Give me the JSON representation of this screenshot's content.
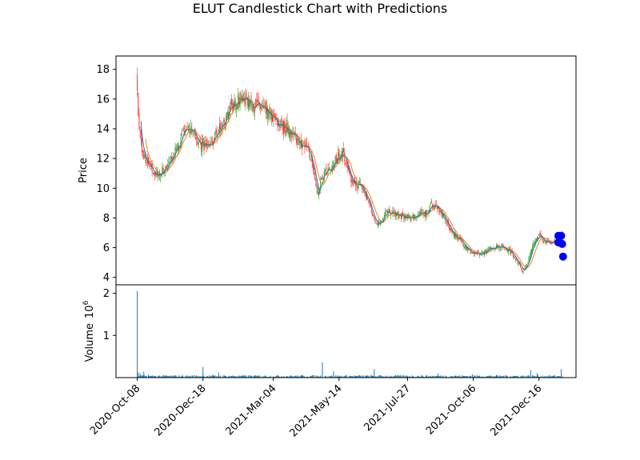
{
  "chart_data": {
    "type": "candlestick",
    "title": "ELUT Candlestick Chart with Predictions",
    "price_panel": {
      "ylabel": "Price",
      "ylim": [
        3.5,
        18.9
      ],
      "yticks": [
        4,
        6,
        8,
        10,
        12,
        14,
        16,
        18
      ]
    },
    "volume_panel": {
      "ylabel": "Volume",
      "ylabel_multiplier": "10",
      "ylabel_exponent": "6",
      "ylim": [
        0,
        2.2
      ],
      "yticks": [
        1,
        2
      ],
      "ytick_labels": [
        "1",
        "2"
      ]
    },
    "x_axis": {
      "range_days": [
        -23,
        474
      ],
      "ticks": [
        {
          "day": 0,
          "label": "2020-Oct-08"
        },
        {
          "day": 71,
          "label": "2020-Dec-18"
        },
        {
          "day": 147,
          "label": "2021-Mar-04"
        },
        {
          "day": 218,
          "label": "2021-May-14"
        },
        {
          "day": 292,
          "label": "2021-Jul-27"
        },
        {
          "day": 363,
          "label": "2021-Oct-06"
        },
        {
          "day": 434,
          "label": "2021-Dec-16"
        }
      ]
    },
    "colors": {
      "up": "#2ca02c",
      "down": "#ff3333",
      "ma_short": "#1f77b4",
      "ma_long": "#ff7f0e",
      "volume": "#1f77b4",
      "prediction": "#0000ff"
    },
    "price_anchors": [
      [
        0,
        17.0
      ],
      [
        1,
        14.6
      ],
      [
        3,
        13.8
      ],
      [
        5,
        12.4
      ],
      [
        8,
        12.1
      ],
      [
        12,
        11.6
      ],
      [
        16,
        11.2
      ],
      [
        20,
        10.9
      ],
      [
        24,
        11.0
      ],
      [
        30,
        11.3
      ],
      [
        36,
        11.9
      ],
      [
        42,
        12.6
      ],
      [
        48,
        13.4
      ],
      [
        53,
        14.3
      ],
      [
        58,
        13.9
      ],
      [
        63,
        13.2
      ],
      [
        70,
        12.9
      ],
      [
        76,
        12.8
      ],
      [
        82,
        13.2
      ],
      [
        88,
        13.9
      ],
      [
        94,
        14.6
      ],
      [
        100,
        15.3
      ],
      [
        106,
        15.8
      ],
      [
        112,
        16.0
      ],
      [
        120,
        15.9
      ],
      [
        128,
        15.6
      ],
      [
        134,
        15.4
      ],
      [
        140,
        15.0
      ],
      [
        146,
        14.8
      ],
      [
        152,
        14.4
      ],
      [
        158,
        14.2
      ],
      [
        164,
        13.9
      ],
      [
        170,
        13.5
      ],
      [
        176,
        13.0
      ],
      [
        182,
        12.9
      ],
      [
        188,
        12.0
      ],
      [
        192,
        10.7
      ],
      [
        195,
        9.7
      ],
      [
        198,
        10.4
      ],
      [
        204,
        11.1
      ],
      [
        210,
        11.5
      ],
      [
        216,
        12.1
      ],
      [
        222,
        12.4
      ],
      [
        226,
        11.5
      ],
      [
        230,
        10.6
      ],
      [
        236,
        10.3
      ],
      [
        242,
        10.1
      ],
      [
        248,
        9.4
      ],
      [
        252,
        8.7
      ],
      [
        256,
        7.9
      ],
      [
        262,
        7.6
      ],
      [
        268,
        8.3
      ],
      [
        274,
        8.4
      ],
      [
        280,
        8.2
      ],
      [
        288,
        8.1
      ],
      [
        296,
        8.0
      ],
      [
        304,
        8.2
      ],
      [
        312,
        8.3
      ],
      [
        318,
        8.9
      ],
      [
        324,
        8.8
      ],
      [
        330,
        8.1
      ],
      [
        336,
        7.5
      ],
      [
        342,
        6.9
      ],
      [
        348,
        6.6
      ],
      [
        354,
        6.1
      ],
      [
        360,
        5.7
      ],
      [
        366,
        5.5
      ],
      [
        372,
        5.6
      ],
      [
        378,
        5.8
      ],
      [
        384,
        6.0
      ],
      [
        390,
        6.1
      ],
      [
        396,
        6.0
      ],
      [
        402,
        5.8
      ],
      [
        408,
        5.4
      ],
      [
        412,
        4.9
      ],
      [
        416,
        4.4
      ],
      [
        420,
        4.7
      ],
      [
        424,
        5.4
      ],
      [
        428,
        6.3
      ],
      [
        432,
        6.7
      ],
      [
        436,
        6.8
      ],
      [
        440,
        6.5
      ],
      [
        444,
        6.3
      ],
      [
        448,
        6.3
      ],
      [
        452,
        6.5
      ],
      [
        458,
        6.7
      ],
      [
        460,
        6.6
      ]
    ],
    "volume_spikes": [
      [
        0,
        2.05
      ],
      [
        1,
        0.12
      ],
      [
        3,
        0.1
      ],
      [
        7,
        0.14
      ],
      [
        12,
        0.07
      ],
      [
        71,
        0.25
      ],
      [
        88,
        0.12
      ],
      [
        200,
        0.36
      ],
      [
        212,
        0.15
      ],
      [
        256,
        0.2
      ],
      [
        325,
        0.1
      ],
      [
        362,
        0.08
      ],
      [
        425,
        0.18
      ],
      [
        432,
        0.1
      ],
      [
        458,
        0.2
      ]
    ],
    "predictions": [
      {
        "day": 455,
        "price": 6.8
      },
      {
        "day": 458,
        "price": 6.8
      },
      {
        "day": 455,
        "price": 6.35
      },
      {
        "day": 459,
        "price": 6.25
      },
      {
        "day": 460,
        "price": 5.4
      }
    ]
  }
}
